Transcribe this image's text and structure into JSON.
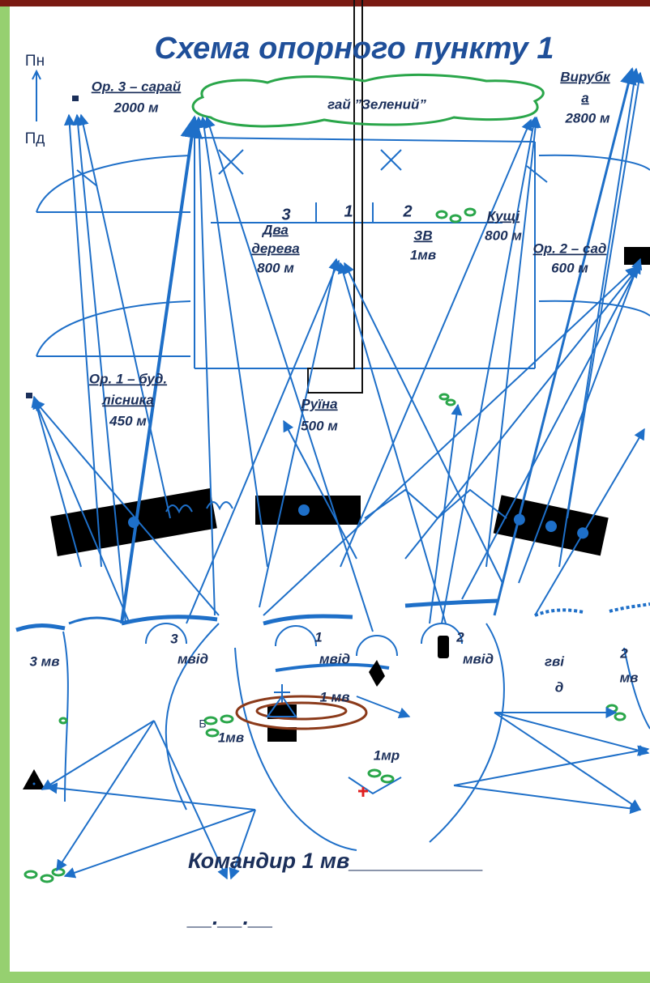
{
  "title": "Схема опорного пункту 1",
  "compass": {
    "north": "Пн",
    "south": "Пд"
  },
  "labels": {
    "or3": [
      "Ор. 3 – сарай",
      "2000 м"
    ],
    "grove": [
      "гай ”Зелений”"
    ],
    "clearing": [
      "Вирубк",
      "а",
      "2800 м"
    ],
    "sectors": [
      "3",
      "1",
      "2"
    ],
    "two_trees": [
      "Два",
      "дерева",
      "800 м"
    ],
    "zv": [
      "ЗВ",
      "1мв"
    ],
    "bushes": [
      "Кущі",
      "800 м"
    ],
    "or2": [
      "Ор. 2 – сад",
      "600 м"
    ],
    "or1": [
      "Ор. 1 – буд.",
      "лісника",
      "450 м"
    ],
    "ruin": [
      "Руїна",
      "500 м"
    ],
    "mv3": [
      "3 мв"
    ],
    "mvid3": [
      "3",
      "мвід"
    ],
    "mvid1": [
      "1",
      "мвід"
    ],
    "mvid2": [
      "2",
      "мвід"
    ],
    "gvid": [
      "гві",
      "д"
    ],
    "mv2": [
      "2",
      "мв"
    ],
    "mv1": [
      "1 мв"
    ],
    "b": [
      "Б"
    ],
    "mv1b": [
      "1мв"
    ],
    "mr1": [
      "1мр"
    ]
  },
  "footer": {
    "signature": "Командир 1 мв___________",
    "date": "__.__.__"
  }
}
